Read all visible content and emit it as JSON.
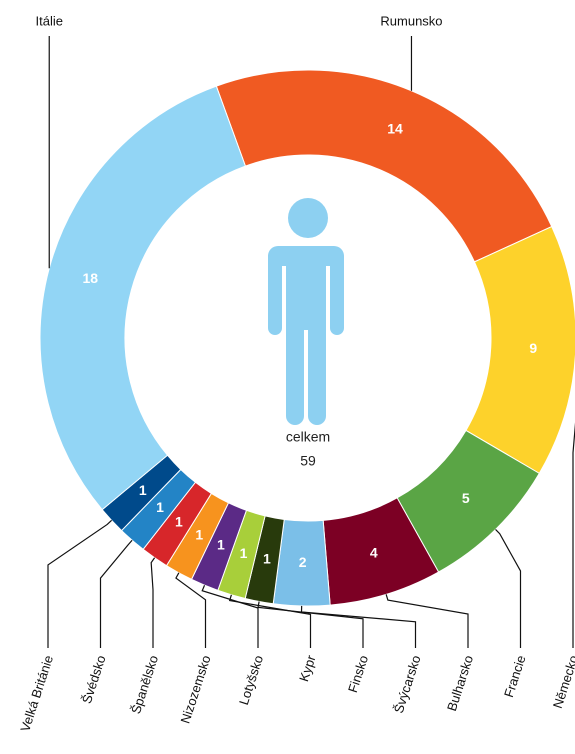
{
  "chart_data": {
    "type": "donut",
    "categories": [
      "Rumunsko",
      "Německo",
      "Francie",
      "Bulharsko",
      "Švýcarsko",
      "Finsko",
      "Kypr",
      "Lotyšsko",
      "Nizozemsko",
      "Španělsko",
      "Švédsko",
      "Velká Británie",
      "Itálie"
    ],
    "values": [
      14,
      9,
      5,
      4,
      2,
      1,
      1,
      1,
      1,
      1,
      1,
      1,
      18
    ],
    "colors": [
      "#f05a22",
      "#fdd22b",
      "#5aa545",
      "#7c0024",
      "#7bbfe8",
      "#283a0c",
      "#a8cf3a",
      "#5b2a86",
      "#f7931e",
      "#d7262a",
      "#2384c6",
      "#004a8b",
      "#92d5f5"
    ],
    "center_label": "celkem",
    "total": 59
  }
}
